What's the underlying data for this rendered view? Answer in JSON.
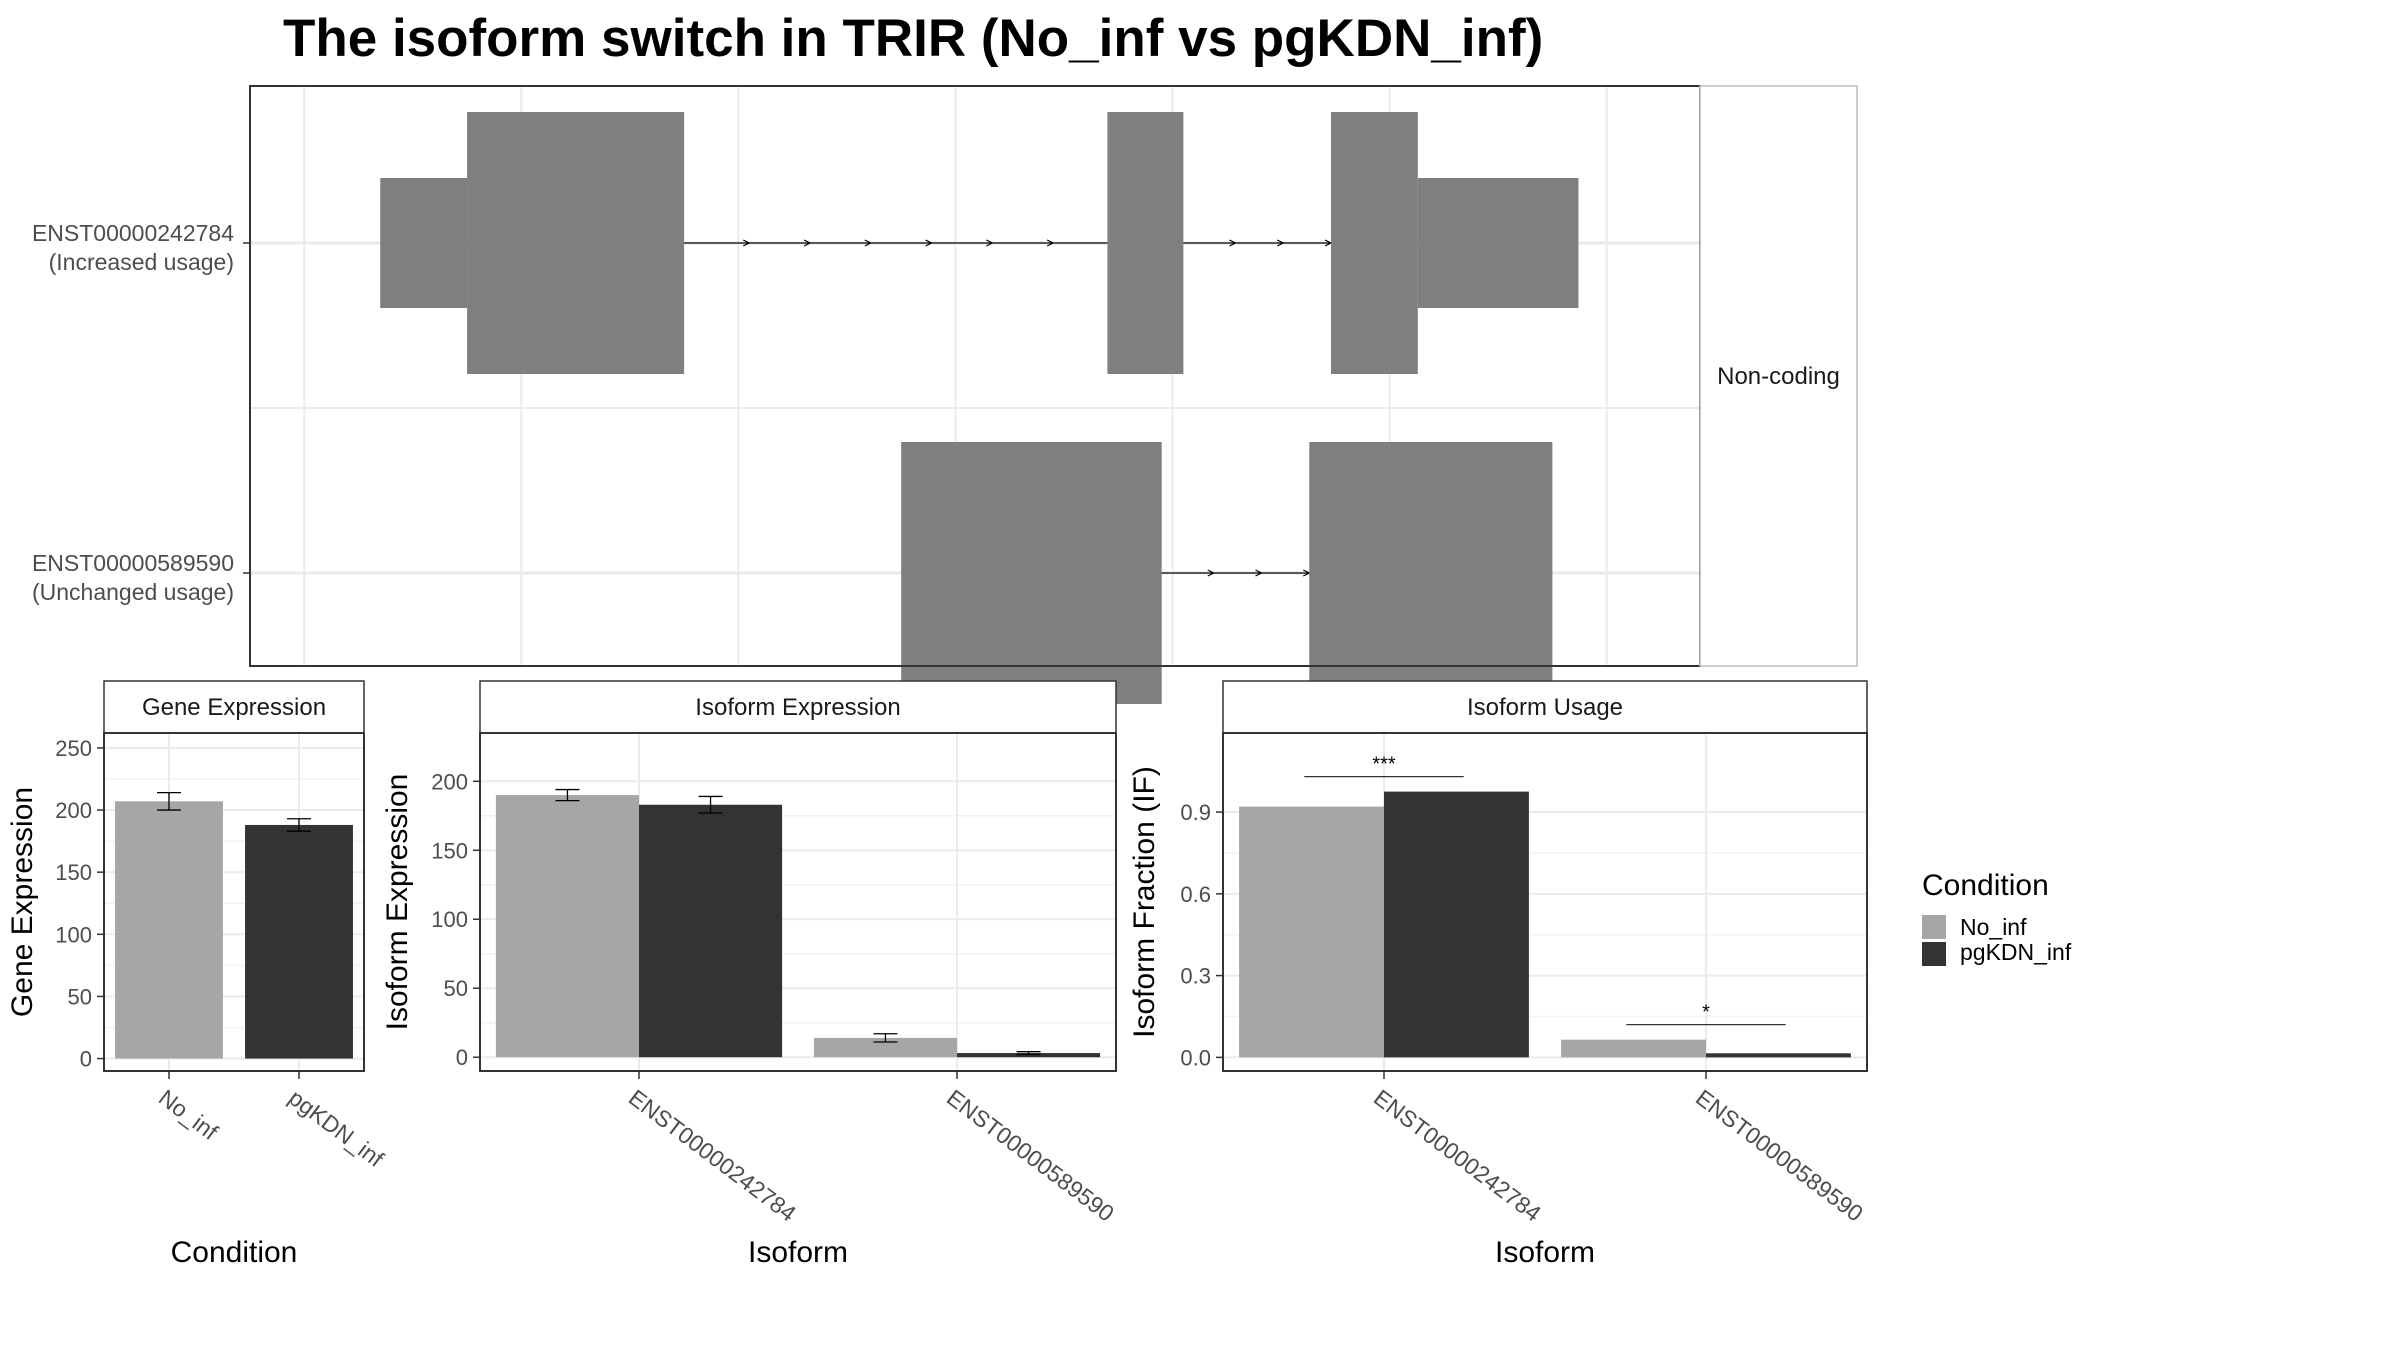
{
  "title": "The isoform switch in TRIR (No_inf vs pgKDN_inf)",
  "colors": {
    "background": "#ffffff",
    "exon": "#7f7f7f",
    "grid": "#ebebeb",
    "panel_border": "#333333",
    "strip_border": "#333333",
    "text": "#4d4d4d",
    "no_inf": "#a6a6a6",
    "pgkdn_inf": "#333333"
  },
  "chart_data": [
    {
      "type": "gene-structure",
      "strip_label": "Non-coding",
      "transcripts": [
        {
          "id": "ENST00000242784",
          "label_line1": "ENST00000242784",
          "label_line2": "(Increased usage)",
          "exons": [
            {
              "start": 0.6,
              "end": 1.0,
              "kind": "utr"
            },
            {
              "start": 1.0,
              "end": 2.0,
              "kind": "cds"
            },
            {
              "start": 3.95,
              "end": 4.3,
              "kind": "cds"
            },
            {
              "start": 4.98,
              "end": 5.38,
              "kind": "cds"
            },
            {
              "start": 5.38,
              "end": 6.12,
              "kind": "utr"
            }
          ],
          "intron_arrows": [
            2.3,
            2.58,
            2.86,
            3.14,
            3.42,
            3.7,
            3.98,
            4.26,
            4.54,
            4.76,
            4.98
          ]
        },
        {
          "id": "ENST00000589590",
          "label_line1": "ENST00000589590",
          "label_line2": "(Unchanged usage)",
          "exons": [
            {
              "start": 3.0,
              "end": 4.2,
              "kind": "cds"
            },
            {
              "start": 4.88,
              "end": 6.0,
              "kind": "cds"
            }
          ],
          "intron_arrows": [
            4.44,
            4.66,
            4.88
          ]
        }
      ],
      "x_range": [
        0.0,
        6.68
      ],
      "x_grid": [
        0.25,
        1.25,
        2.25,
        3.25,
        4.25,
        5.25,
        6.25
      ]
    },
    {
      "type": "bar",
      "strip_label": "Gene Expression",
      "xlabel": "Condition",
      "ylabel": "Gene Expression",
      "categories": [
        "No_inf",
        "pgKDN_inf"
      ],
      "values": [
        207,
        188
      ],
      "errors": [
        7,
        5
      ],
      "ylim": [
        -10,
        262
      ],
      "yticks": [
        0,
        50,
        100,
        150,
        200,
        250
      ]
    },
    {
      "type": "bar",
      "strip_label": "Isoform Expression",
      "xlabel": "Isoform",
      "ylabel": "Isoform Expression",
      "categories": [
        "ENST00000242784",
        "ENST00000589590"
      ],
      "series": [
        {
          "name": "No_inf",
          "values": [
            190,
            14
          ],
          "errors": [
            4,
            3
          ]
        },
        {
          "name": "pgKDN_inf",
          "values": [
            183,
            3
          ],
          "errors": [
            6,
            1
          ]
        }
      ],
      "ylim": [
        -10,
        235
      ],
      "yticks": [
        0,
        50,
        100,
        150,
        200
      ]
    },
    {
      "type": "bar",
      "strip_label": "Isoform Usage",
      "xlabel": "Isoform",
      "ylabel": "Isoform Fraction (IF)",
      "categories": [
        "ENST00000242784",
        "ENST00000589590"
      ],
      "series": [
        {
          "name": "No_inf",
          "values": [
            0.92,
            0.065
          ]
        },
        {
          "name": "pgKDN_inf",
          "values": [
            0.975,
            0.015
          ]
        }
      ],
      "significance": [
        {
          "category": "ENST00000242784",
          "label": "***",
          "y": 1.03
        },
        {
          "category": "ENST00000589590",
          "label": "*",
          "y": 0.12
        }
      ],
      "ylim": [
        -0.05,
        1.19
      ],
      "yticks": [
        0.0,
        0.3,
        0.6,
        0.9
      ],
      "ytick_labels": [
        "0.0",
        "0.3",
        "0.6",
        "0.9"
      ]
    }
  ],
  "legend": {
    "title": "Condition",
    "items": [
      {
        "label": "No_inf",
        "color": "#a6a6a6"
      },
      {
        "label": "pgKDN_inf",
        "color": "#333333"
      }
    ]
  }
}
